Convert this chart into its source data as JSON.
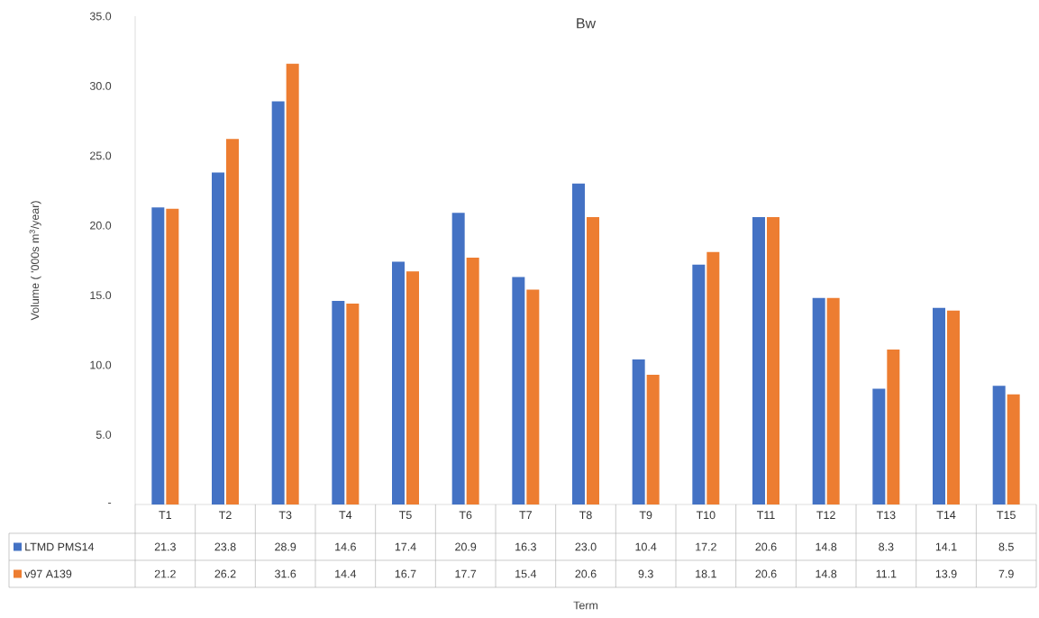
{
  "chart_data": {
    "type": "bar",
    "title": "Bw",
    "ylabel": "Volume ( '000s m$^{3}$/year)",
    "annotations": [
      "Term"
    ],
    "categories": [
      "T1",
      "T2",
      "T3",
      "T4",
      "T5",
      "T6",
      "T7",
      "T8",
      "T9",
      "T10",
      "T11",
      "T12",
      "T13",
      "T14",
      "T15"
    ],
    "series": [
      {
        "name": "LTMD PMS14",
        "color": "#4472c4",
        "values": [
          21.3,
          23.8,
          28.9,
          14.6,
          17.4,
          20.9,
          16.3,
          23.0,
          10.4,
          17.2,
          20.6,
          14.8,
          8.3,
          14.1,
          8.5
        ],
        "value_labels": [
          "21.3",
          "23.8",
          "28.9",
          "14.6",
          "17.4",
          "20.9",
          "16.3",
          "23.0",
          "10.4",
          "17.2",
          "20.6",
          "14.8",
          "8.3",
          "14.1",
          "8.5"
        ]
      },
      {
        "name": "v97 A139",
        "color": "#ed7d31",
        "values": [
          21.2,
          26.2,
          31.6,
          14.4,
          16.7,
          17.7,
          15.4,
          20.6,
          9.3,
          18.1,
          20.6,
          14.8,
          11.1,
          13.9,
          7.9
        ],
        "value_labels": [
          "21.2",
          "26.2",
          "31.6",
          "14.4",
          "16.7",
          "17.7",
          "15.4",
          "20.6",
          "9.3",
          "18.1",
          "20.6",
          "14.8",
          "11.1",
          "13.9",
          "7.9"
        ]
      }
    ],
    "ylim": [
      0,
      35
    ],
    "yticks": [
      {
        "value": 0,
        "label": "-"
      },
      {
        "value": 5,
        "label": "5.0"
      },
      {
        "value": 10,
        "label": "10.0"
      },
      {
        "value": 15,
        "label": "15.0"
      },
      {
        "value": 20,
        "label": "20.0"
      },
      {
        "value": 25,
        "label": "25.0"
      },
      {
        "value": 30,
        "label": "30.0"
      },
      {
        "value": 35,
        "label": "35.0"
      }
    ],
    "grid": false,
    "legend": "bottom"
  }
}
